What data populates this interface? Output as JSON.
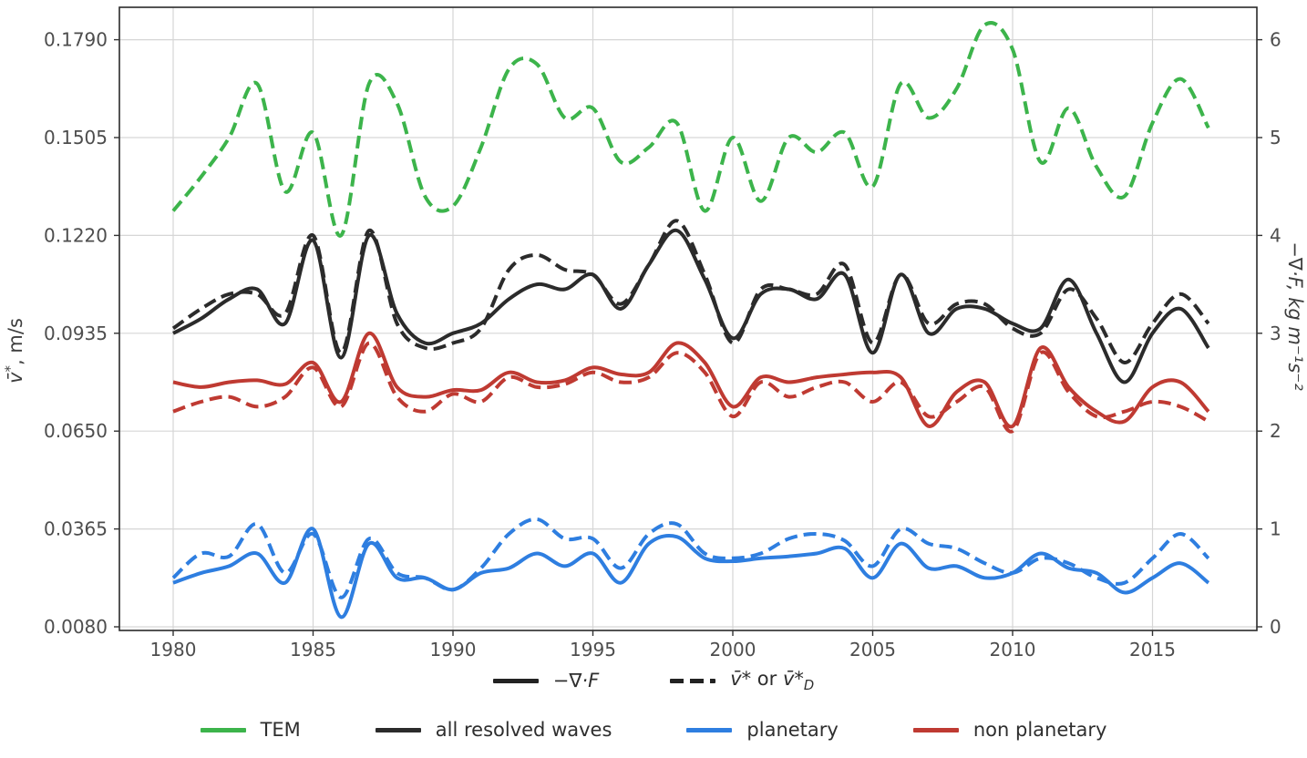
{
  "chart_data": {
    "type": "line",
    "title": "",
    "grid": true,
    "legend_position": "below",
    "xlim": [
      1978.1,
      2018.7
    ],
    "ylim_right": [
      -0.04,
      6.33
    ],
    "x_years": [
      1980,
      1981,
      1982,
      1983,
      1984,
      1985,
      1986,
      1987,
      1988,
      1989,
      1990,
      1991,
      1992,
      1993,
      1994,
      1995,
      1996,
      1997,
      1998,
      1999,
      2000,
      2001,
      2002,
      2003,
      2004,
      2005,
      2006,
      2007,
      2008,
      2009,
      2010,
      2011,
      2012,
      2013,
      2014,
      2015,
      2016,
      2017
    ],
    "x_ticks": {
      "values": [
        1980,
        1985,
        1990,
        1995,
        2000,
        2005,
        2010,
        2015
      ],
      "labels": [
        "1980",
        "1985",
        "1990",
        "1995",
        "2000",
        "2005",
        "2010",
        "2015"
      ]
    },
    "y_left": {
      "label_base": "v̄",
      "label_sup": "*",
      "label_rest": ", m/s",
      "tick_labels": [
        "0.0080",
        "0.0365",
        "0.0650",
        "0.0935",
        "0.1220",
        "0.1505",
        "0.1790"
      ]
    },
    "y_right": {
      "label": "−∇·F, kg m⁻¹s⁻²",
      "tick_values": [
        0,
        1,
        2,
        3,
        4,
        5,
        6
      ],
      "tick_labels": [
        "0",
        "1",
        "2",
        "3",
        "4",
        "5",
        "6"
      ]
    },
    "series": [
      {
        "id": "tem-vstar",
        "group": "TEM",
        "color": "#3cb44b",
        "line": "dashed",
        "axis": "right-units",
        "values": [
          4.25,
          4.6,
          5.0,
          5.55,
          4.45,
          5.05,
          4.0,
          5.55,
          5.35,
          4.4,
          4.3,
          4.9,
          5.7,
          5.75,
          5.2,
          5.3,
          4.75,
          4.9,
          5.15,
          4.25,
          5.0,
          4.35,
          5.0,
          4.85,
          5.05,
          4.5,
          5.55,
          5.2,
          5.5,
          6.15,
          5.9,
          4.75,
          5.3,
          4.7,
          4.4,
          5.15,
          5.6,
          5.1
        ]
      },
      {
        "id": "all-waves-vstar",
        "group": "all resolved waves",
        "color": "#2b2b2b",
        "line": "dashed",
        "axis": "right-units",
        "values": [
          3.05,
          3.25,
          3.4,
          3.4,
          3.2,
          4.0,
          2.8,
          4.05,
          3.1,
          2.85,
          2.9,
          3.05,
          3.65,
          3.8,
          3.65,
          3.6,
          3.3,
          3.7,
          4.15,
          3.6,
          2.9,
          3.45,
          3.45,
          3.4,
          3.7,
          2.9,
          3.6,
          3.1,
          3.3,
          3.3,
          3.05,
          3.0,
          3.45,
          3.15,
          2.7,
          3.1,
          3.4,
          3.1
        ]
      },
      {
        "id": "all-waves-divF",
        "group": "all resolved waves",
        "color": "#2b2b2b",
        "line": "solid",
        "axis": "right-units",
        "values": [
          3.0,
          3.15,
          3.35,
          3.45,
          3.1,
          3.95,
          2.75,
          4.0,
          3.2,
          2.9,
          3.0,
          3.1,
          3.35,
          3.5,
          3.45,
          3.6,
          3.25,
          3.7,
          4.05,
          3.55,
          2.95,
          3.4,
          3.45,
          3.35,
          3.6,
          2.8,
          3.6,
          3.0,
          3.25,
          3.25,
          3.1,
          3.05,
          3.55,
          3.0,
          2.5,
          3.0,
          3.25,
          2.85
        ]
      },
      {
        "id": "nonplanetary-vstar",
        "group": "non planetary",
        "color": "#bf3a32",
        "line": "dashed",
        "axis": "right-units",
        "values": [
          2.2,
          2.3,
          2.35,
          2.25,
          2.35,
          2.65,
          2.25,
          2.9,
          2.35,
          2.2,
          2.38,
          2.3,
          2.55,
          2.45,
          2.48,
          2.6,
          2.5,
          2.55,
          2.8,
          2.6,
          2.15,
          2.5,
          2.35,
          2.45,
          2.5,
          2.3,
          2.5,
          2.15,
          2.3,
          2.45,
          2.0,
          2.8,
          2.4,
          2.15,
          2.2,
          2.3,
          2.25,
          2.1
        ]
      },
      {
        "id": "nonplanetary-divF",
        "group": "non planetary",
        "color": "#bf3a32",
        "line": "solid",
        "axis": "right-units",
        "values": [
          2.5,
          2.45,
          2.5,
          2.52,
          2.48,
          2.7,
          2.3,
          3.0,
          2.45,
          2.35,
          2.42,
          2.42,
          2.6,
          2.5,
          2.52,
          2.65,
          2.58,
          2.6,
          2.9,
          2.7,
          2.25,
          2.55,
          2.5,
          2.55,
          2.58,
          2.6,
          2.55,
          2.05,
          2.4,
          2.5,
          2.05,
          2.85,
          2.45,
          2.2,
          2.1,
          2.45,
          2.5,
          2.2
        ]
      },
      {
        "id": "planetary-vstar",
        "group": "planetary",
        "color": "#2e7ee0",
        "line": "dashed",
        "axis": "right-units",
        "values": [
          0.5,
          0.75,
          0.72,
          1.05,
          0.55,
          0.95,
          0.3,
          0.9,
          0.55,
          0.5,
          0.38,
          0.6,
          0.95,
          1.1,
          0.9,
          0.9,
          0.6,
          0.95,
          1.05,
          0.75,
          0.7,
          0.75,
          0.9,
          0.95,
          0.88,
          0.62,
          1.0,
          0.85,
          0.8,
          0.65,
          0.55,
          0.7,
          0.65,
          0.5,
          0.45,
          0.7,
          0.95,
          0.7
        ]
      },
      {
        "id": "planetary-divF",
        "group": "planetary",
        "color": "#2e7ee0",
        "line": "solid",
        "axis": "right-units",
        "values": [
          0.45,
          0.55,
          0.62,
          0.75,
          0.45,
          1.0,
          0.1,
          0.85,
          0.5,
          0.5,
          0.38,
          0.55,
          0.6,
          0.75,
          0.62,
          0.75,
          0.45,
          0.85,
          0.92,
          0.7,
          0.67,
          0.7,
          0.72,
          0.75,
          0.8,
          0.5,
          0.85,
          0.6,
          0.62,
          0.5,
          0.55,
          0.75,
          0.6,
          0.55,
          0.35,
          0.5,
          0.65,
          0.45
        ]
      }
    ],
    "legend_series": [
      {
        "label": "TEM",
        "color": "#3cb44b"
      },
      {
        "label": "all resolved waves",
        "color": "#2b2b2b"
      },
      {
        "label": "planetary",
        "color": "#2e7ee0"
      },
      {
        "label": "non planetary",
        "color": "#bf3a32"
      }
    ]
  },
  "legends": {
    "style": {
      "solid_label": "−∇·F",
      "dashed_v1": "v̄*",
      "dashed_or": " or ",
      "dashed_v2": "v̄*",
      "dashed_sub": "D"
    }
  }
}
